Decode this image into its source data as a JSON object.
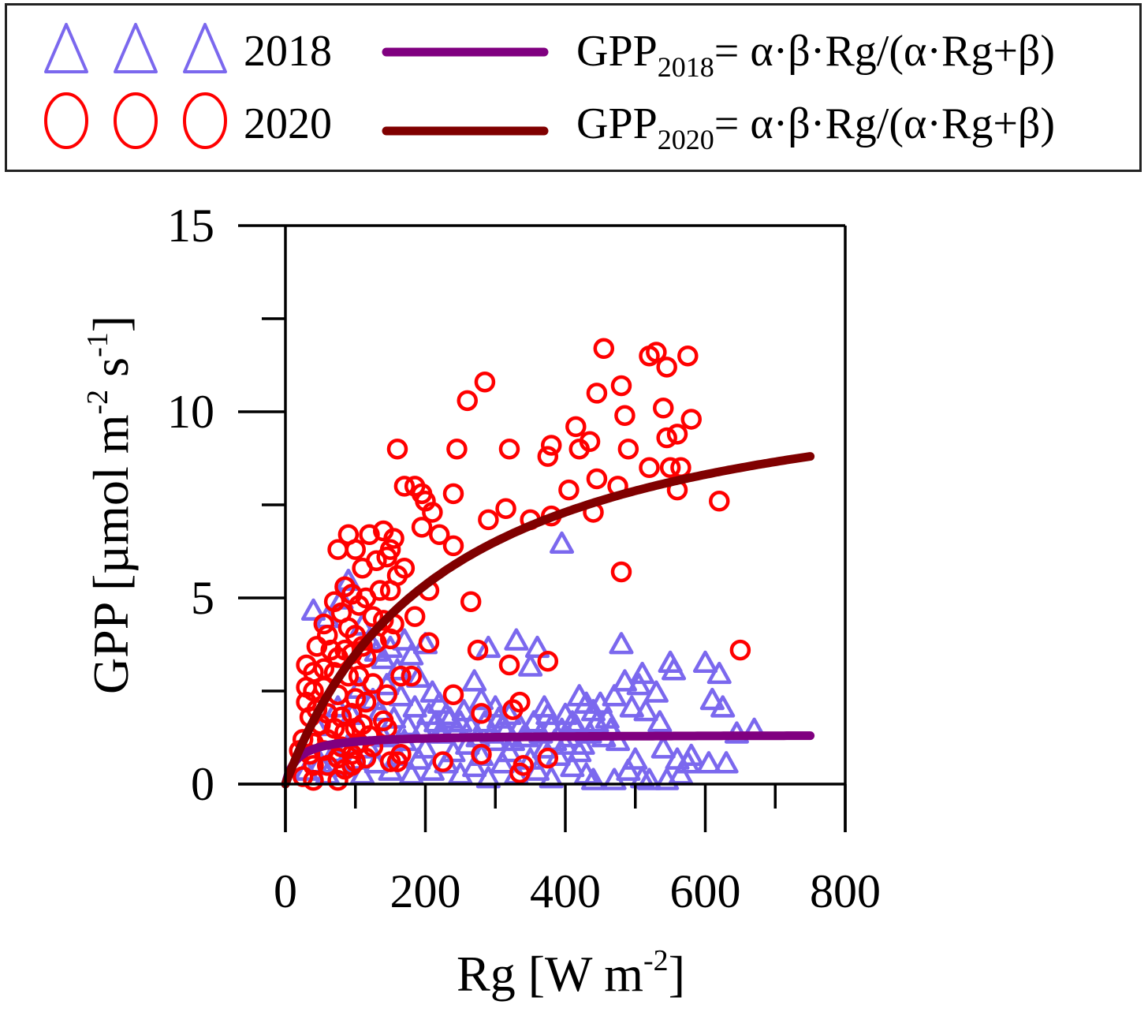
{
  "legend": {
    "entries": [
      {
        "marker": "triangle",
        "label": "2018",
        "marker_color": "#7B68EE",
        "line_color": "#800080",
        "formula_prefix": "GPP",
        "formula_sub": "2018",
        "formula_rest": "= α·β·Rg/(α·Rg+β)"
      },
      {
        "marker": "circle",
        "label": "2020",
        "marker_color": "#FF0000",
        "line_color": "#800000",
        "formula_prefix": "GPP",
        "formula_sub": "2020",
        "formula_rest": "= α·β·Rg/(α·Rg+β)"
      }
    ]
  },
  "chart_data": {
    "type": "scatter",
    "title": "",
    "xlabel": "Rg [W m",
    "xlabel_sup": "-2",
    "xlabel_close": "]",
    "ylabel": "GPP [µmol m",
    "ylabel_sup1": "-2",
    "ylabel_mid": " s",
    "ylabel_sup2": "-1",
    "ylabel_close": "]",
    "xlim": [
      0,
      800
    ],
    "ylim": [
      0,
      15
    ],
    "x_ticks": [
      0,
      200,
      400,
      600,
      800
    ],
    "x_tick_labels": [
      "0",
      "200",
      "400",
      "600",
      "800"
    ],
    "x_minor_ticks": [
      100,
      300,
      500,
      700
    ],
    "y_ticks": [
      0,
      5,
      10,
      15
    ],
    "y_tick_labels": [
      "0",
      "5",
      "10",
      "15"
    ],
    "y_minor_ticks": [
      2.5,
      7.5,
      12.5
    ],
    "grid": false,
    "legend_position": "top (outside)",
    "series": [
      {
        "name": "2018",
        "marker": "triangle",
        "color": "#7B68EE",
        "points": [
          [
            40,
            4.6
          ],
          [
            60,
            4.4
          ],
          [
            80,
            4.9
          ],
          [
            90,
            5.4
          ],
          [
            110,
            4.2
          ],
          [
            120,
            3.8
          ],
          [
            130,
            3.5
          ],
          [
            140,
            3.3
          ],
          [
            150,
            3.6
          ],
          [
            160,
            3.0
          ],
          [
            170,
            3.8
          ],
          [
            180,
            3.4
          ],
          [
            190,
            2.8
          ],
          [
            200,
            3.7
          ],
          [
            210,
            2.4
          ],
          [
            220,
            2.1
          ],
          [
            230,
            1.8
          ],
          [
            250,
            1.6
          ],
          [
            270,
            2.7
          ],
          [
            280,
            2.2
          ],
          [
            290,
            3.6
          ],
          [
            300,
            2.0
          ],
          [
            310,
            1.5
          ],
          [
            320,
            1.8
          ],
          [
            330,
            3.8
          ],
          [
            350,
            3.1
          ],
          [
            360,
            3.6
          ],
          [
            370,
            2.0
          ],
          [
            380,
            1.5
          ],
          [
            395,
            6.4
          ],
          [
            400,
            1.8
          ],
          [
            410,
            1.6
          ],
          [
            420,
            2.3
          ],
          [
            430,
            2.1
          ],
          [
            440,
            1.9
          ],
          [
            450,
            2.1
          ],
          [
            460,
            1.7
          ],
          [
            470,
            2.3
          ],
          [
            480,
            3.7
          ],
          [
            485,
            2.7
          ],
          [
            495,
            2.0
          ],
          [
            505,
            2.6
          ],
          [
            510,
            2.9
          ],
          [
            515,
            1.9
          ],
          [
            530,
            2.4
          ],
          [
            535,
            1.6
          ],
          [
            550,
            3.2
          ],
          [
            555,
            3.0
          ],
          [
            600,
            3.2
          ],
          [
            610,
            2.2
          ],
          [
            620,
            2.9
          ],
          [
            625,
            2.0
          ],
          [
            645,
            1.3
          ],
          [
            670,
            1.4
          ],
          [
            30,
            0.3
          ],
          [
            50,
            0.5
          ],
          [
            60,
            0.2
          ],
          [
            70,
            0.8
          ],
          [
            80,
            0.4
          ],
          [
            90,
            1.0
          ],
          [
            100,
            0.6
          ],
          [
            110,
            0.2
          ],
          [
            120,
            0.9
          ],
          [
            130,
            0.5
          ],
          [
            140,
            1.2
          ],
          [
            150,
            0.3
          ],
          [
            160,
            0.7
          ],
          [
            170,
            1.1
          ],
          [
            180,
            0.2
          ],
          [
            190,
            0.6
          ],
          [
            200,
            0.9
          ],
          [
            210,
            0.3
          ],
          [
            220,
            1.3
          ],
          [
            230,
            0.5
          ],
          [
            240,
            0.8
          ],
          [
            250,
            0.2
          ],
          [
            260,
            1.0
          ],
          [
            270,
            0.4
          ],
          [
            280,
            0.7
          ],
          [
            290,
            0.1
          ],
          [
            300,
            1.1
          ],
          [
            310,
            0.5
          ],
          [
            320,
            0.8
          ],
          [
            330,
            0.2
          ],
          [
            340,
            1.2
          ],
          [
            350,
            0.6
          ],
          [
            360,
            0.3
          ],
          [
            370,
            0.9
          ],
          [
            380,
            0.1
          ],
          [
            390,
            0.7
          ],
          [
            400,
            1.0
          ],
          [
            410,
            0.4
          ],
          [
            420,
            0.8
          ],
          [
            430,
            0.2
          ],
          [
            440,
            0.05
          ],
          [
            470,
            0.05
          ],
          [
            490,
            0.3
          ],
          [
            500,
            0.6
          ],
          [
            510,
            0.1
          ],
          [
            520,
            0.05
          ],
          [
            540,
            0.9
          ],
          [
            545,
            0.05
          ],
          [
            560,
            0.6
          ],
          [
            565,
            0.2
          ],
          [
            575,
            0.5
          ],
          [
            580,
            0.7
          ],
          [
            605,
            0.5
          ],
          [
            630,
            0.5
          ],
          [
            45,
            1.5
          ],
          [
            75,
            2.0
          ],
          [
            95,
            1.8
          ],
          [
            105,
            2.5
          ],
          [
            125,
            2.2
          ],
          [
            135,
            1.9
          ],
          [
            145,
            2.6
          ],
          [
            155,
            1.7
          ],
          [
            165,
            2.3
          ],
          [
            175,
            1.5
          ],
          [
            185,
            2.0
          ],
          [
            195,
            1.4
          ],
          [
            205,
            1.8
          ],
          [
            215,
            1.6
          ],
          [
            225,
            1.3
          ],
          [
            235,
            1.7
          ],
          [
            245,
            1.4
          ],
          [
            255,
            1.9
          ],
          [
            265,
            1.5
          ],
          [
            275,
            1.2
          ],
          [
            285,
            1.6
          ],
          [
            295,
            1.3
          ],
          [
            305,
            1.7
          ],
          [
            315,
            1.4
          ],
          [
            325,
            1.1
          ],
          [
            335,
            1.5
          ],
          [
            345,
            1.2
          ],
          [
            355,
            1.6
          ],
          [
            365,
            1.3
          ],
          [
            375,
            1.8
          ],
          [
            385,
            1.1
          ],
          [
            395,
            1.4
          ],
          [
            405,
            1.2
          ],
          [
            415,
            1.5
          ],
          [
            425,
            1.0
          ],
          [
            435,
            1.3
          ],
          [
            445,
            1.6
          ],
          [
            455,
            1.2
          ],
          [
            465,
            1.4
          ],
          [
            475,
            1.1
          ]
        ]
      },
      {
        "name": "2020",
        "marker": "circle",
        "color": "#FF0000",
        "points": [
          [
            455,
            11.7
          ],
          [
            520,
            11.5
          ],
          [
            530,
            11.6
          ],
          [
            545,
            11.2
          ],
          [
            575,
            11.5
          ],
          [
            285,
            10.8
          ],
          [
            260,
            10.3
          ],
          [
            445,
            10.5
          ],
          [
            480,
            10.7
          ],
          [
            485,
            9.9
          ],
          [
            540,
            10.1
          ],
          [
            415,
            9.6
          ],
          [
            580,
            9.8
          ],
          [
            160,
            9.0
          ],
          [
            245,
            9.0
          ],
          [
            320,
            9.0
          ],
          [
            375,
            8.8
          ],
          [
            380,
            9.1
          ],
          [
            420,
            9.0
          ],
          [
            435,
            9.2
          ],
          [
            490,
            9.0
          ],
          [
            545,
            9.3
          ],
          [
            560,
            9.4
          ],
          [
            170,
            8.0
          ],
          [
            185,
            8.0
          ],
          [
            195,
            7.8
          ],
          [
            200,
            7.6
          ],
          [
            210,
            7.3
          ],
          [
            240,
            7.8
          ],
          [
            315,
            7.4
          ],
          [
            290,
            7.1
          ],
          [
            350,
            7.1
          ],
          [
            380,
            7.2
          ],
          [
            405,
            7.9
          ],
          [
            445,
            8.2
          ],
          [
            475,
            8.0
          ],
          [
            520,
            8.5
          ],
          [
            550,
            8.5
          ],
          [
            565,
            8.5
          ],
          [
            560,
            7.9
          ],
          [
            620,
            7.6
          ],
          [
            440,
            7.3
          ],
          [
            195,
            6.9
          ],
          [
            220,
            6.7
          ],
          [
            240,
            6.4
          ],
          [
            480,
            5.7
          ],
          [
            75,
            6.3
          ],
          [
            100,
            6.3
          ],
          [
            90,
            6.7
          ],
          [
            120,
            6.7
          ],
          [
            140,
            6.8
          ],
          [
            155,
            6.6
          ],
          [
            130,
            6.0
          ],
          [
            145,
            6.1
          ],
          [
            150,
            6.3
          ],
          [
            160,
            5.6
          ],
          [
            170,
            5.8
          ],
          [
            110,
            5.8
          ],
          [
            85,
            5.3
          ],
          [
            95,
            5.1
          ],
          [
            115,
            5.0
          ],
          [
            135,
            5.2
          ],
          [
            150,
            5.2
          ],
          [
            205,
            5.2
          ],
          [
            265,
            4.9
          ],
          [
            70,
            4.9
          ],
          [
            80,
            4.6
          ],
          [
            105,
            4.8
          ],
          [
            125,
            4.5
          ],
          [
            140,
            4.4
          ],
          [
            155,
            4.3
          ],
          [
            185,
            4.5
          ],
          [
            55,
            4.3
          ],
          [
            60,
            4.0
          ],
          [
            90,
            4.2
          ],
          [
            100,
            4.0
          ],
          [
            110,
            3.7
          ],
          [
            130,
            3.8
          ],
          [
            150,
            3.9
          ],
          [
            45,
            3.7
          ],
          [
            65,
            3.6
          ],
          [
            75,
            3.4
          ],
          [
            85,
            3.6
          ],
          [
            95,
            3.5
          ],
          [
            115,
            3.4
          ],
          [
            205,
            3.8
          ],
          [
            275,
            3.6
          ],
          [
            375,
            3.3
          ],
          [
            320,
            3.2
          ],
          [
            650,
            3.6
          ],
          [
            30,
            3.2
          ],
          [
            40,
            3.0
          ],
          [
            55,
            3.1
          ],
          [
            70,
            3.0
          ],
          [
            90,
            2.9
          ],
          [
            105,
            2.9
          ],
          [
            125,
            2.7
          ],
          [
            165,
            2.9
          ],
          [
            180,
            2.9
          ],
          [
            30,
            2.6
          ],
          [
            40,
            2.5
          ],
          [
            55,
            2.6
          ],
          [
            75,
            2.4
          ],
          [
            100,
            2.3
          ],
          [
            115,
            2.2
          ],
          [
            145,
            2.4
          ],
          [
            240,
            2.4
          ],
          [
            335,
            2.2
          ],
          [
            325,
            2.0
          ],
          [
            30,
            2.2
          ],
          [
            45,
            2.0
          ],
          [
            60,
            1.9
          ],
          [
            80,
            1.8
          ],
          [
            95,
            1.9
          ],
          [
            110,
            1.6
          ],
          [
            140,
            1.7
          ],
          [
            280,
            1.9
          ],
          [
            35,
            1.8
          ],
          [
            50,
            1.6
          ],
          [
            70,
            1.5
          ],
          [
            85,
            1.4
          ],
          [
            100,
            1.5
          ],
          [
            120,
            1.3
          ],
          [
            145,
            1.5
          ],
          [
            25,
            1.2
          ],
          [
            40,
            1.1
          ],
          [
            60,
            1.2
          ],
          [
            80,
            1.0
          ],
          [
            105,
            1.1
          ],
          [
            125,
            1.0
          ],
          [
            20,
            0.9
          ],
          [
            35,
            0.8
          ],
          [
            55,
            0.9
          ],
          [
            75,
            0.7
          ],
          [
            95,
            0.8
          ],
          [
            115,
            0.7
          ],
          [
            165,
            0.8
          ],
          [
            280,
            0.8
          ],
          [
            375,
            0.7
          ],
          [
            40,
            0.5
          ],
          [
            60,
            0.5
          ],
          [
            85,
            0.4
          ],
          [
            100,
            0.6
          ],
          [
            150,
            0.6
          ],
          [
            160,
            0.6
          ],
          [
            225,
            0.6
          ],
          [
            335,
            0.3
          ],
          [
            340,
            0.5
          ],
          [
            25,
            0.2
          ],
          [
            40,
            0.1
          ],
          [
            75,
            0.1
          ],
          [
            95,
            0.5
          ]
        ]
      }
    ],
    "fits": [
      {
        "name": "GPP2018",
        "series": "2018",
        "color": "#800080",
        "alpha": 0.08,
        "beta": 1.33,
        "x_range": [
          0,
          750
        ]
      },
      {
        "name": "GPP2020",
        "series": "2020",
        "color": "#800000",
        "alpha": 0.05,
        "beta": 11.5,
        "x_range": [
          0,
          750
        ]
      }
    ]
  }
}
